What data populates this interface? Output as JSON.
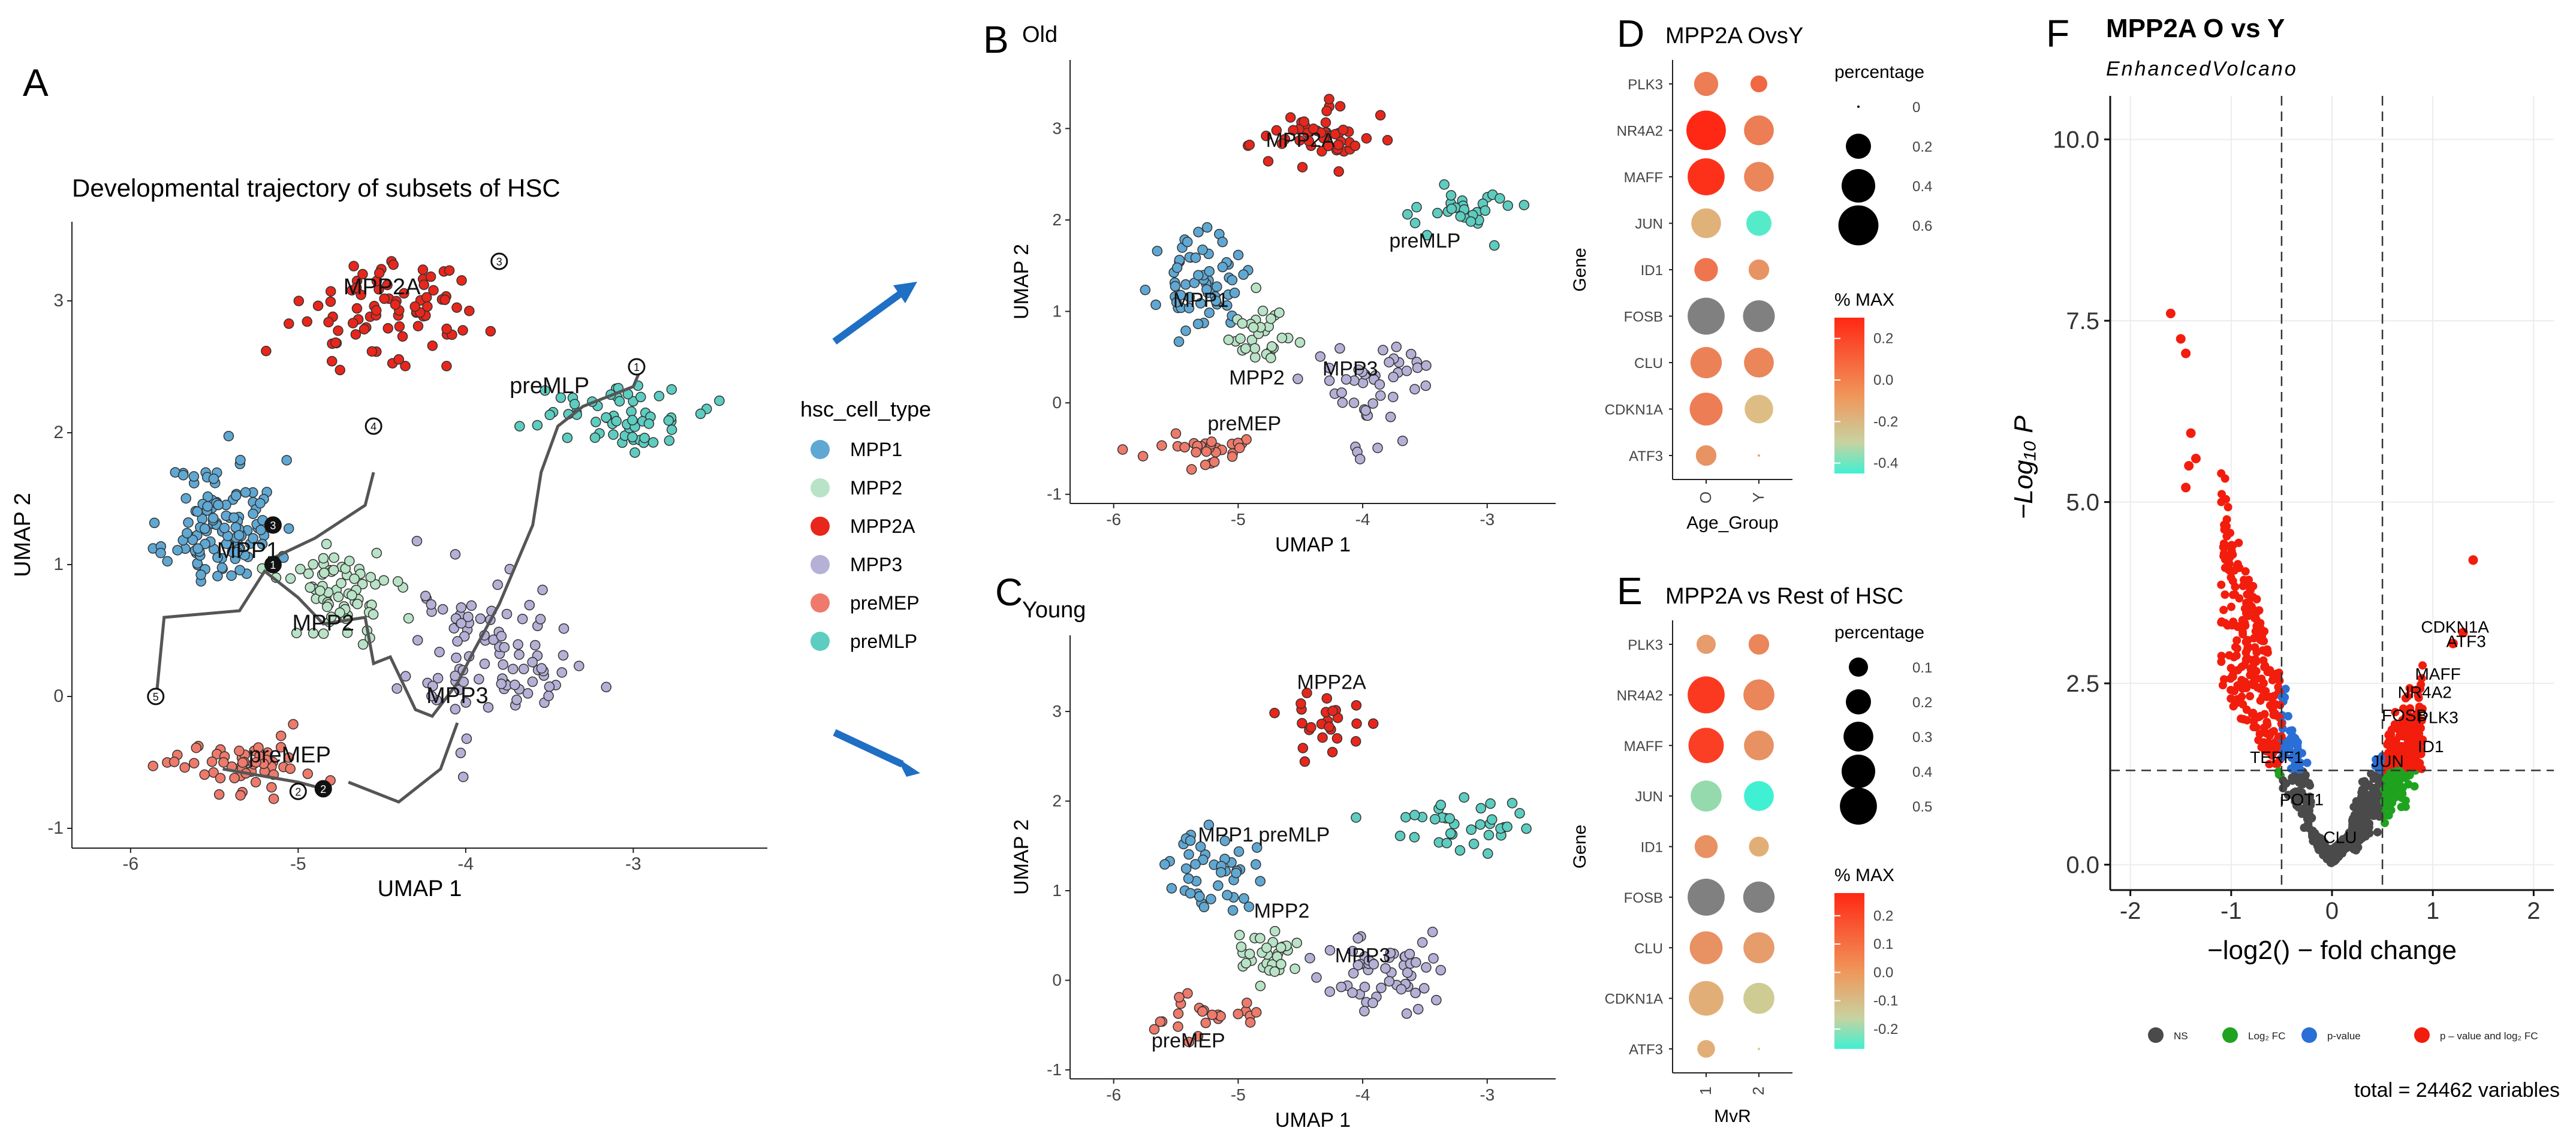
{
  "figure": {
    "panel_letters": [
      "A",
      "B",
      "C",
      "D",
      "E",
      "F"
    ],
    "total_variables": "total = 24462 variables"
  },
  "colors": {
    "MPP1": "#5fa8d3",
    "MPP2": "#b9e3c6",
    "MPP2A": "#e8261b",
    "MPP3": "#b4b0d6",
    "preMEP": "#ee7a6b",
    "preMLP": "#5ccdc0",
    "arrow": "#1f6fc4",
    "ns": "#4a4a4a",
    "log2fc": "#1fa31f",
    "pvalue": "#2a6fd6",
    "both": "#f21d0d"
  },
  "chart_data": [
    {
      "id": "A",
      "type": "scatter",
      "title": "Developmental trajectory of subsets of HSC",
      "xlabel": "UMAP 1",
      "ylabel": "UMAP 2",
      "xlim": [
        -6.35,
        -2.2
      ],
      "ylim": [
        -1.15,
        3.6
      ],
      "xticks": [
        -6,
        -5,
        -4,
        -3
      ],
      "yticks": [
        -1,
        0,
        1,
        2,
        3
      ],
      "legend_title": "hsc_cell_type",
      "legend": [
        "MPP1",
        "MPP2",
        "MPP2A",
        "MPP3",
        "preMEP",
        "preMLP"
      ],
      "clusters": [
        {
          "name": "MPP1",
          "cx": -5.45,
          "cy": 1.3,
          "sx": 0.3,
          "sy": 0.45,
          "n": 120
        },
        {
          "name": "MPP2",
          "cx": -4.75,
          "cy": 0.8,
          "sx": 0.3,
          "sy": 0.35,
          "n": 70
        },
        {
          "name": "MPP2A",
          "cx": -4.45,
          "cy": 2.95,
          "sx": 0.5,
          "sy": 0.35,
          "n": 85
        },
        {
          "name": "MPP3",
          "cx": -3.85,
          "cy": 0.3,
          "sx": 0.45,
          "sy": 0.55,
          "n": 95
        },
        {
          "name": "preMEP",
          "cx": -5.35,
          "cy": -0.5,
          "sx": 0.45,
          "sy": 0.2,
          "n": 55
        },
        {
          "name": "preMLP",
          "cx": -3.1,
          "cy": 2.15,
          "sx": 0.4,
          "sy": 0.25,
          "n": 60
        }
      ],
      "labels": [
        {
          "text": "MPP2A",
          "x": -4.5,
          "y": 3.05
        },
        {
          "text": "preMLP",
          "x": -3.5,
          "y": 2.3
        },
        {
          "text": "MPP1",
          "x": -5.3,
          "y": 1.05
        },
        {
          "text": "MPP2",
          "x": -4.85,
          "y": 0.5
        },
        {
          "text": "MPP3",
          "x": -4.05,
          "y": -0.05
        },
        {
          "text": "preMEP",
          "x": -5.05,
          "y": -0.5
        }
      ],
      "trajectory": [
        [
          -5.85,
          -0.05
        ],
        [
          -5.8,
          0.6
        ],
        [
          -5.35,
          0.65
        ],
        [
          -5.2,
          0.95
        ],
        [
          -5.0,
          0.75
        ],
        [
          -4.85,
          0.55
        ],
        [
          -4.6,
          0.6
        ],
        [
          -4.55,
          0.25
        ],
        [
          -4.45,
          0.3
        ],
        [
          -4.3,
          -0.1
        ],
        [
          -4.2,
          -0.15
        ],
        [
          -4.05,
          0.1
        ],
        [
          -3.95,
          0.35
        ],
        [
          -3.8,
          0.7
        ],
        [
          -3.7,
          1.0
        ],
        [
          -3.6,
          1.3
        ],
        [
          -3.55,
          1.7
        ],
        [
          -3.45,
          2.05
        ],
        [
          -3.3,
          2.2
        ],
        [
          -3.0,
          2.35
        ],
        [
          -2.95,
          2.5
        ]
      ],
      "branch1": [
        [
          -5.15,
          1.05
        ],
        [
          -4.9,
          1.2
        ],
        [
          -4.6,
          1.45
        ],
        [
          -4.55,
          1.7
        ]
      ],
      "branch2": [
        [
          -4.7,
          -0.65
        ],
        [
          -4.4,
          -0.8
        ],
        [
          -4.15,
          -0.55
        ],
        [
          -4.05,
          -0.2
        ]
      ],
      "branch3": [
        [
          -5.45,
          -0.55
        ],
        [
          -5.0,
          -0.65
        ],
        [
          -4.85,
          -0.7
        ]
      ],
      "nodes": [
        {
          "label": "1",
          "x": -5.15,
          "y": 1.0,
          "filled": true
        },
        {
          "label": "2",
          "x": -4.85,
          "y": -0.7,
          "filled": true
        },
        {
          "label": "3",
          "x": -5.15,
          "y": 1.3,
          "filled": true
        },
        {
          "label": "4",
          "x": -4.55,
          "y": 2.05,
          "filled": false
        },
        {
          "label": "1",
          "x": -2.98,
          "y": 2.5,
          "filled": false
        },
        {
          "label": "2",
          "x": -5.0,
          "y": -0.72,
          "filled": false
        },
        {
          "label": "3",
          "x": -3.8,
          "y": 3.3,
          "filled": false
        },
        {
          "label": "5",
          "x": -5.85,
          "y": 0.0,
          "filled": false
        }
      ]
    },
    {
      "id": "B",
      "type": "scatter",
      "title": "Old",
      "xlabel": "UMAP 1",
      "ylabel": "UMAP 2",
      "xlim": [
        -6.35,
        -2.45
      ],
      "ylim": [
        -1.1,
        3.75
      ],
      "xticks": [
        -6,
        -5,
        -4,
        -3
      ],
      "yticks": [
        -1,
        0,
        1,
        2,
        3
      ],
      "clusters": [
        {
          "name": "MPP1",
          "cx": -5.3,
          "cy": 1.3,
          "sx": 0.3,
          "sy": 0.45,
          "n": 65
        },
        {
          "name": "MPP2",
          "cx": -4.85,
          "cy": 0.75,
          "sx": 0.25,
          "sy": 0.3,
          "n": 30
        },
        {
          "name": "MPP2A",
          "cx": -4.4,
          "cy": 2.9,
          "sx": 0.45,
          "sy": 0.3,
          "n": 50
        },
        {
          "name": "MPP3",
          "cx": -3.9,
          "cy": 0.2,
          "sx": 0.45,
          "sy": 0.5,
          "n": 45
        },
        {
          "name": "preMEP",
          "cx": -5.3,
          "cy": -0.5,
          "sx": 0.45,
          "sy": 0.2,
          "n": 30
        },
        {
          "name": "preMLP",
          "cx": -3.2,
          "cy": 2.1,
          "sx": 0.4,
          "sy": 0.25,
          "n": 30
        }
      ],
      "labels": [
        {
          "text": "MPP2A",
          "x": -4.5,
          "y": 2.8
        },
        {
          "text": "preMLP",
          "x": -3.5,
          "y": 1.7
        },
        {
          "text": "MPP1",
          "x": -5.3,
          "y": 1.05
        },
        {
          "text": "MPP2",
          "x": -4.85,
          "y": 0.2
        },
        {
          "text": "MPP3",
          "x": -4.1,
          "y": 0.3
        },
        {
          "text": "preMEP",
          "x": -4.95,
          "y": -0.3
        }
      ]
    },
    {
      "id": "C",
      "type": "scatter",
      "title": "Young",
      "xlabel": "UMAP 1",
      "ylabel": "UMAP 2",
      "xlim": [
        -6.35,
        -2.45
      ],
      "ylim": [
        -1.1,
        3.85
      ],
      "xticks": [
        -6,
        -5,
        -4,
        -3
      ],
      "yticks": [
        -1,
        0,
        1,
        2,
        3
      ],
      "clusters": [
        {
          "name": "MPP1",
          "cx": -5.2,
          "cy": 1.2,
          "sx": 0.3,
          "sy": 0.4,
          "n": 45
        },
        {
          "name": "MPP2",
          "cx": -4.75,
          "cy": 0.3,
          "sx": 0.25,
          "sy": 0.3,
          "n": 30
        },
        {
          "name": "MPP2A",
          "cx": -4.3,
          "cy": 2.9,
          "sx": 0.4,
          "sy": 0.35,
          "n": 25
        },
        {
          "name": "MPP3",
          "cx": -3.9,
          "cy": 0.1,
          "sx": 0.4,
          "sy": 0.45,
          "n": 55
        },
        {
          "name": "preMEP",
          "cx": -5.3,
          "cy": -0.4,
          "sx": 0.45,
          "sy": 0.25,
          "n": 25
        },
        {
          "name": "preMLP",
          "cx": -3.2,
          "cy": 1.75,
          "sx": 0.5,
          "sy": 0.3,
          "n": 35
        }
      ],
      "labels": [
        {
          "text": "MPP2A",
          "x": -4.25,
          "y": 3.25
        },
        {
          "text": "preMLP",
          "x": -4.55,
          "y": 1.55
        },
        {
          "text": "MPP1",
          "x": -5.1,
          "y": 1.55
        },
        {
          "text": "MPP2",
          "x": -4.65,
          "y": 0.7
        },
        {
          "text": "MPP3",
          "x": -4.0,
          "y": 0.2
        },
        {
          "text": "preMEP",
          "x": -5.4,
          "y": -0.75
        }
      ]
    },
    {
      "id": "D",
      "type": "dotplot",
      "title": "MPP2A OvsY",
      "xlabel": "Age_Group",
      "ylabel": "Gene",
      "groups": [
        "O",
        "Y"
      ],
      "genes": [
        "PLK3",
        "NR4A2",
        "MAFF",
        "JUN",
        "ID1",
        "FOSB",
        "CLU",
        "CDKN1A",
        "ATF3"
      ],
      "pct": [
        [
          0.18,
          0.07
        ],
        [
          0.58,
          0.3
        ],
        [
          0.5,
          0.3
        ],
        [
          0.3,
          0.2
        ],
        [
          0.17,
          0.12
        ],
        [
          0.5,
          0.35
        ],
        [
          0.34,
          0.3
        ],
        [
          0.38,
          0.27
        ],
        [
          0.12,
          0.0
        ]
      ],
      "value": [
        [
          0.1,
          0.15
        ],
        [
          0.3,
          0.1
        ],
        [
          0.28,
          0.08
        ],
        [
          -0.02,
          -0.4
        ],
        [
          0.12,
          0.05
        ],
        [
          null,
          null
        ],
        [
          0.09,
          0.08
        ],
        [
          0.1,
          -0.05
        ],
        [
          0.05,
          0
        ]
      ],
      "size_legend_title": "percentage",
      "size_legend": [
        0.0,
        0.2,
        0.4,
        0.6
      ],
      "color_legend_title": "% MAX",
      "color_ticks": [
        0.2,
        0.0,
        -0.2,
        -0.4
      ],
      "color_range": [
        -0.45,
        0.3
      ]
    },
    {
      "id": "E",
      "type": "dotplot",
      "title": "MPP2A vs Rest of HSC",
      "xlabel": "MvR",
      "ylabel": "Gene",
      "groups": [
        "1",
        "2"
      ],
      "genes": [
        "PLK3",
        "NR4A2",
        "MAFF",
        "JUN",
        "ID1",
        "FOSB",
        "CLU",
        "CDKN1A",
        "ATF3"
      ],
      "pct": [
        [
          0.1,
          0.12
        ],
        [
          0.5,
          0.33
        ],
        [
          0.45,
          0.3
        ],
        [
          0.33,
          0.3
        ],
        [
          0.16,
          0.11
        ],
        [
          0.5,
          0.34
        ],
        [
          0.38,
          0.33
        ],
        [
          0.43,
          0.33
        ],
        [
          0.08,
          0.0
        ]
      ],
      "value": [
        [
          0.08,
          0.12
        ],
        [
          0.25,
          0.12
        ],
        [
          0.24,
          0.1
        ],
        [
          -0.12,
          -0.28
        ],
        [
          0.1,
          0.05
        ],
        [
          null,
          null
        ],
        [
          0.1,
          0.08
        ],
        [
          0.05,
          -0.02
        ],
        [
          0.05,
          0
        ]
      ],
      "size_legend_title": "percentage",
      "size_legend": [
        0.1,
        0.2,
        0.3,
        0.4,
        0.5
      ],
      "color_legend_title": "% MAX",
      "color_ticks": [
        0.2,
        0.1,
        0.0,
        -0.1,
        -0.2
      ],
      "color_range": [
        -0.27,
        0.28
      ]
    },
    {
      "id": "F",
      "type": "volcano",
      "title": "MPP2A O vs Y",
      "subtitle": "EnhancedVolcano",
      "xlabel": "−log2() − fold change",
      "ylabel": "−Log₁₀ P",
      "xlim": [
        -2.2,
        2.2
      ],
      "ylim": [
        -0.35,
        10.6
      ],
      "xticks": [
        -2,
        -1,
        0,
        1,
        2
      ],
      "yticks": [
        0.0,
        2.5,
        5.0,
        7.5,
        10.0
      ],
      "ytick_labels": [
        "0.0",
        "2.5",
        "5.0",
        "7.5",
        "10.0"
      ],
      "fc_cutoff": 0.5,
      "p_cutoff": 1.3,
      "labeled_points": [
        {
          "text": "CDKN1A",
          "x": 1.22,
          "y": 3.2
        },
        {
          "text": "ATF3",
          "x": 1.33,
          "y": 3.0
        },
        {
          "text": "MAFF",
          "x": 1.05,
          "y": 2.55
        },
        {
          "text": "NR4A2",
          "x": 0.92,
          "y": 2.3
        },
        {
          "text": "FOSB",
          "x": 0.72,
          "y": 1.98
        },
        {
          "text": "PLK3",
          "x": 1.05,
          "y": 1.95
        },
        {
          "text": "ID1",
          "x": 0.98,
          "y": 1.55
        },
        {
          "text": "JUN",
          "x": 0.55,
          "y": 1.35
        },
        {
          "text": "TERF1",
          "x": -0.55,
          "y": 1.4
        },
        {
          "text": "POT1",
          "x": -0.3,
          "y": 0.82
        },
        {
          "text": "CLU",
          "x": 0.08,
          "y": 0.3
        }
      ],
      "outliers": [
        [
          -1.6,
          7.6
        ],
        [
          -1.5,
          7.25
        ],
        [
          -1.45,
          7.05
        ],
        [
          -1.4,
          5.95
        ],
        [
          -1.35,
          5.6
        ],
        [
          -1.42,
          5.5
        ],
        [
          1.4,
          4.2
        ],
        [
          -1.45,
          5.2
        ],
        [
          1.3,
          3.2
        ],
        [
          1.2,
          3.05
        ]
      ],
      "legend": [
        "NS",
        "Log₂ FC",
        "p-value",
        "p – value and log₂ FC"
      ],
      "caption": "total = 24462 variables"
    }
  ]
}
